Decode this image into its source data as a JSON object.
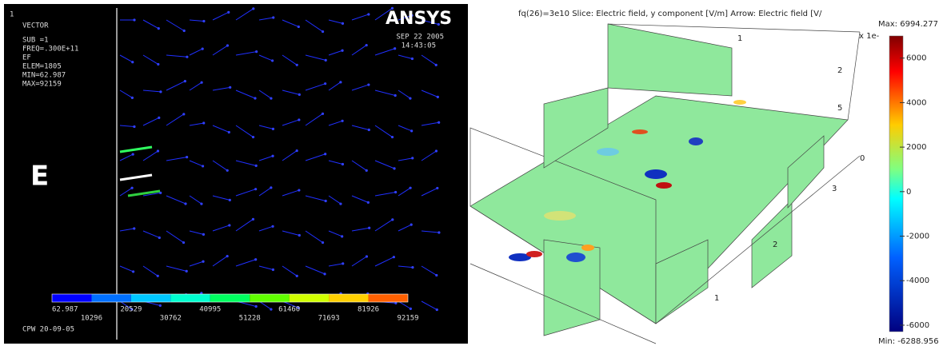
{
  "left_panel": {
    "index": "1",
    "plot_name": "VECTOR",
    "info": [
      "SUB =1",
      "FREQ=.300E+11",
      "EF",
      "ELEM=1805",
      "MIN=62.987",
      "MAX=92159"
    ],
    "logo": "ANSYS",
    "date": "SEP 22 2005",
    "time": "14:43:05",
    "field_label": "E",
    "colorbar_labels": [
      62.987,
      10296,
      20529,
      30762,
      40995,
      51228,
      61460,
      71693,
      81926,
      92159
    ],
    "footer": "CPW 20-09-05"
  },
  "right_panel": {
    "title": "fq(26)=3e10    Slice: Electric field, y component  [V/m]    Arrow: Electric field  [V/",
    "scale_note": "x 1e-",
    "axis_labels": [
      "1",
      "2",
      "5",
      "0",
      "3",
      "2",
      "1"
    ],
    "colorbar": {
      "max_label": "Max: 6994.277",
      "min_label": "Min: -6288.956",
      "max": 6994.277,
      "min": -6288.956,
      "ticks": [
        6000,
        4000,
        2000,
        0,
        -2000,
        -4000,
        -6000
      ]
    }
  }
}
